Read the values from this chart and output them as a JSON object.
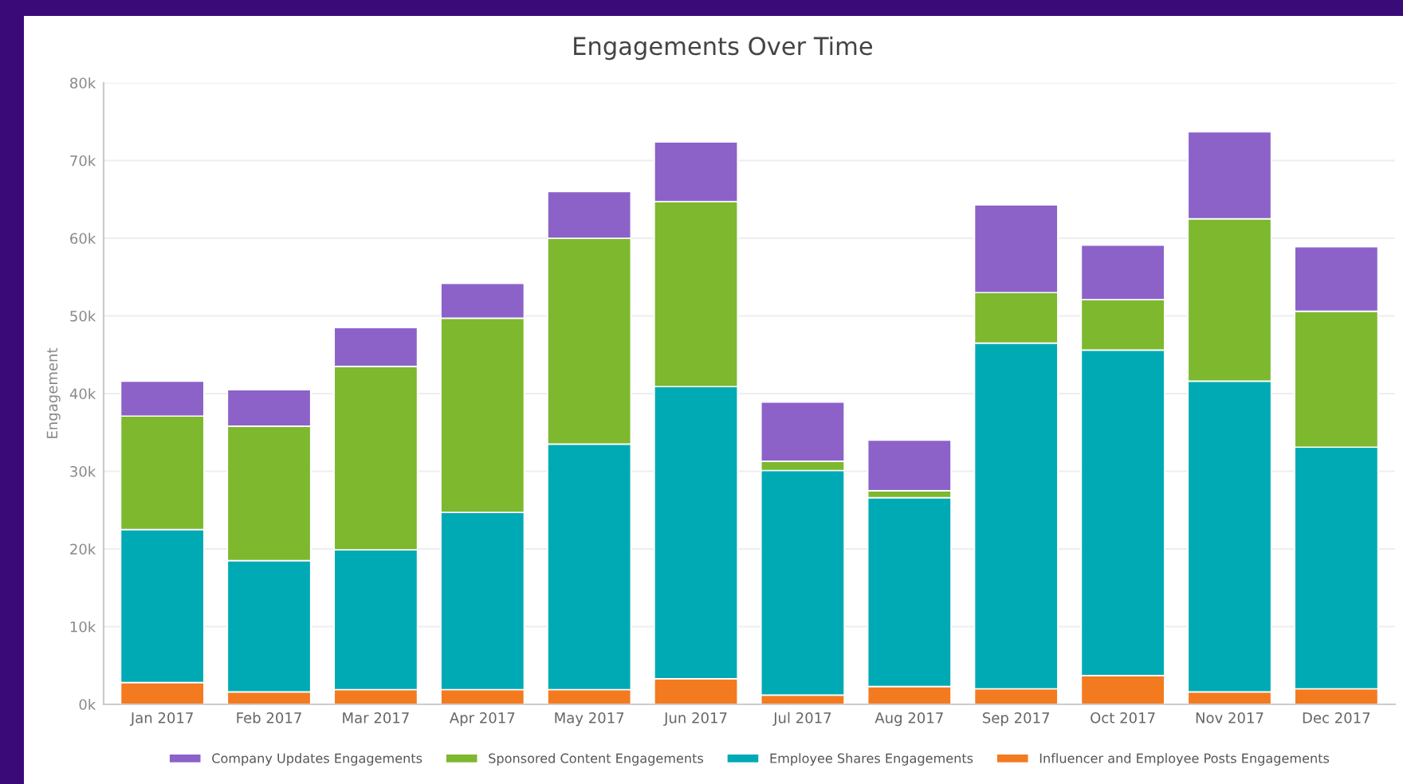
{
  "chart_data": {
    "type": "bar",
    "title": "Engagements Over Time",
    "ylabel": "Engagement",
    "stacked": true,
    "categories": [
      "Jan 2017",
      "Feb 2017",
      "Mar 2017",
      "Apr 2017",
      "May 2017",
      "Jun 2017",
      "Jul 2017",
      "Aug 2017",
      "Sep 2017",
      "Oct 2017",
      "Nov 2017",
      "Dec 2017"
    ],
    "series": [
      {
        "name": "Influencer and Employee Posts Engagements",
        "color": "#f47a20",
        "values": [
          2800,
          1600,
          1900,
          1900,
          1900,
          3300,
          1200,
          2300,
          2000,
          3700,
          1600,
          2000
        ]
      },
      {
        "name": "Employee Shares Engagements",
        "color": "#00aab5",
        "values": [
          19700,
          16900,
          18000,
          22800,
          31600,
          37600,
          28900,
          24300,
          44500,
          41900,
          40000,
          31100
        ]
      },
      {
        "name": "Sponsored Content Engagements",
        "color": "#7db82e",
        "values": [
          14600,
          17300,
          23600,
          25000,
          26500,
          23800,
          1200,
          900,
          6500,
          6500,
          20900,
          17500
        ]
      },
      {
        "name": "Company Updates Engagements",
        "color": "#8c62c9",
        "values": [
          4500,
          4700,
          5000,
          4500,
          6000,
          7700,
          7600,
          6500,
          11300,
          7000,
          11200,
          8300
        ]
      }
    ],
    "ylim": [
      0,
      80000
    ],
    "yticks": [
      {
        "value": 0,
        "label": "0k"
      },
      {
        "value": 10000,
        "label": "10k"
      },
      {
        "value": 20000,
        "label": "20k"
      },
      {
        "value": 30000,
        "label": "30k"
      },
      {
        "value": 40000,
        "label": "40k"
      },
      {
        "value": 50000,
        "label": "50k"
      },
      {
        "value": 60000,
        "label": "60k"
      },
      {
        "value": 70000,
        "label": "70k"
      },
      {
        "value": 80000,
        "label": "80k"
      }
    ],
    "grid": "y",
    "legend": "bottom"
  }
}
